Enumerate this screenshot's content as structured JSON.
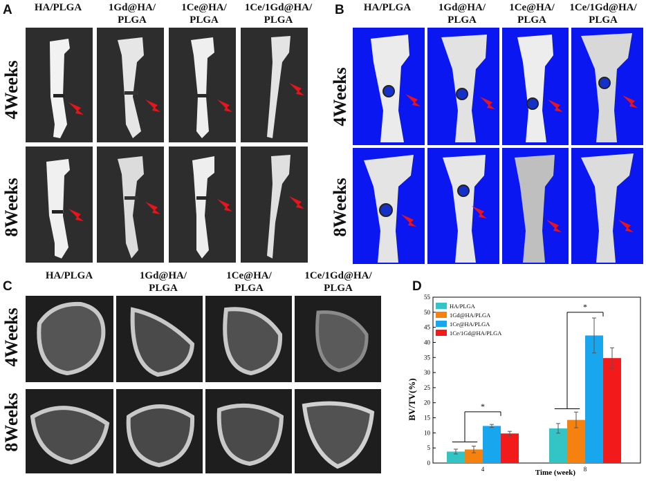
{
  "panels": {
    "A": {
      "letter": "A",
      "columns": [
        "HA/PLGA",
        "1Gd@HA/\nPLGA",
        "1Ce@HA/\nPLGA",
        "1Ce/1Gd@HA/\nPLGA"
      ],
      "rows": [
        "4Weeks",
        "8Weeks"
      ]
    },
    "B": {
      "letter": "B",
      "columns": [
        "HA/PLGA",
        "1Gd@HA/\nPLGA",
        "1Ce@HA/\nPLGA",
        "1Ce/1Gd@HA/\nPLGA"
      ],
      "rows": [
        "4Weeks",
        "8Weeks"
      ]
    },
    "C": {
      "letter": "C",
      "columns": [
        "HA/PLGA",
        "1Gd@HA/\nPLGA",
        "1Ce@HA/\nPLGA",
        "1Ce/1Gd@HA/\nPLGA"
      ],
      "rows": [
        "4Weeks",
        "8Weeks"
      ]
    },
    "D": {
      "letter": "D"
    }
  },
  "colors": {
    "arrow": "#e8141a",
    "ct_background": "#0a17f0",
    "series": [
      "#33c5c5",
      "#f5820f",
      "#18a6ee",
      "#f21a1a"
    ]
  },
  "chart_data": {
    "type": "bar",
    "categories": [
      "4",
      "8"
    ],
    "series": [
      {
        "name": "HA/PLGA",
        "values": [
          3.8,
          11.5
        ],
        "errors": [
          0.8,
          1.6
        ]
      },
      {
        "name": "1Gd@HA/PLGA",
        "values": [
          4.5,
          14.3
        ],
        "errors": [
          1.1,
          2.6
        ]
      },
      {
        "name": "1Ce@HA/PLGA",
        "values": [
          12.3,
          42.3
        ],
        "errors": [
          0.5,
          5.8
        ]
      },
      {
        "name": "1Ce/1Gd@HA/PLGA",
        "values": [
          9.8,
          34.8
        ],
        "errors": [
          0.7,
          3.4
        ]
      }
    ],
    "xlabel": "Time (week)",
    "ylabel": "BV/TV(%)",
    "ylim": [
      0,
      55
    ],
    "yticks": [
      0,
      5,
      10,
      15,
      20,
      25,
      30,
      35,
      40,
      45,
      50,
      55
    ],
    "legend_position": "top-left",
    "significance": [
      "*",
      "*"
    ]
  }
}
